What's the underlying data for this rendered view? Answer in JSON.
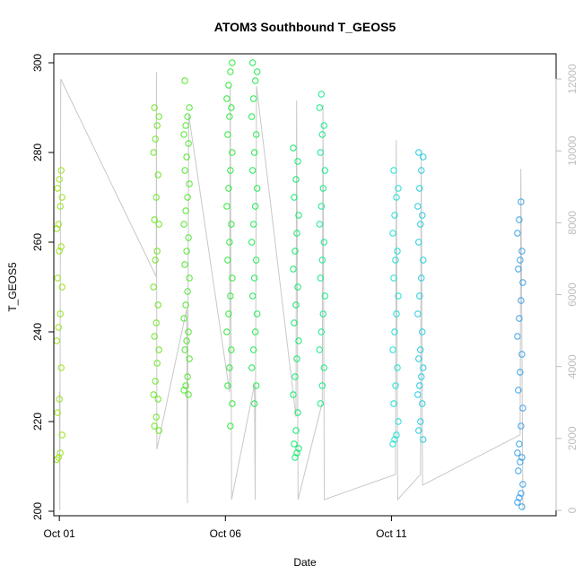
{
  "chart_data": {
    "type": "scatter",
    "title": "ATOM3 Southbound T_GEOS5",
    "xlabel": "Date",
    "ylabel": "T_GEOS5",
    "x_range": [
      "2016-09-30T20:00",
      "2016-10-15T23:00"
    ],
    "ylim": [
      199,
      302
    ],
    "x_ticks": [
      {
        "date": "2016-10-01",
        "label": "Oct 01"
      },
      {
        "date": "2016-10-06",
        "label": "Oct 06"
      },
      {
        "date": "2016-10-11",
        "label": "Oct 11"
      }
    ],
    "y_ticks": [
      200,
      220,
      240,
      260,
      280,
      300
    ],
    "y2_label": "",
    "y2lim": [
      -150,
      12700
    ],
    "y2_ticks": [
      0,
      2000,
      4000,
      6000,
      8000,
      10000,
      12000
    ],
    "y2_color": "#bdbdbd",
    "color_scale": "hue along flight time: yellow-green to green to cyan to blue",
    "series": [
      {
        "color": "#9be21f",
        "x": "2016-10-01T00:00",
        "y": [
          211.5,
          212,
          213,
          217,
          222,
          225,
          232,
          238,
          241,
          244,
          250,
          252,
          258,
          259,
          263,
          264,
          268,
          270,
          272,
          274,
          276
        ]
      },
      {
        "color": "#6fe628",
        "x": "2016-10-03T22:00",
        "y": [
          218,
          219,
          221,
          225,
          226,
          229,
          233,
          236,
          239,
          242,
          246,
          250,
          256,
          258,
          264,
          265,
          270,
          275,
          280,
          283,
          286,
          288,
          290
        ]
      },
      {
        "color": "#52e833",
        "x": "2016-10-04T20:00",
        "y": [
          226,
          227,
          228,
          230,
          234,
          236,
          238,
          240,
          243,
          246,
          249,
          252,
          255,
          258,
          261,
          264,
          267,
          270,
          273,
          276,
          279,
          282,
          284,
          286,
          288,
          290,
          296
        ]
      },
      {
        "color": "#32ea3e",
        "x": "2016-10-06T03:00",
        "y": [
          219,
          224,
          228,
          232,
          236,
          240,
          244,
          248,
          252,
          256,
          260,
          264,
          268,
          272,
          276,
          280,
          284,
          288,
          290,
          292,
          295,
          298,
          300
        ]
      },
      {
        "color": "#23ea55",
        "x": "2016-10-06T21:00",
        "y": [
          224,
          228,
          232,
          236,
          240,
          244,
          248,
          252,
          256,
          260,
          264,
          268,
          272,
          276,
          280,
          284,
          288,
          292,
          296,
          298,
          300
        ]
      },
      {
        "color": "#14e96e",
        "x": "2016-10-08T03:00",
        "y": [
          212,
          213,
          214,
          215,
          218,
          222,
          226,
          230,
          234,
          238,
          242,
          246,
          250,
          254,
          258,
          262,
          266,
          270,
          274,
          278,
          281
        ]
      },
      {
        "color": "#19ea8a",
        "x": "2016-10-08T22:00",
        "y": [
          224,
          228,
          232,
          236,
          240,
          244,
          248,
          252,
          256,
          260,
          264,
          268,
          272,
          276,
          280,
          284,
          286,
          290,
          293
        ]
      },
      {
        "color": "#22e0d4",
        "x": "2016-10-11T03:00",
        "y": [
          215,
          216,
          217,
          220,
          224,
          228,
          232,
          236,
          240,
          244,
          248,
          252,
          256,
          258,
          262,
          266,
          270,
          272,
          276
        ]
      },
      {
        "color": "#28cde0",
        "x": "2016-10-11T21:00",
        "y": [
          216,
          218,
          220,
          224,
          226,
          228,
          230,
          232,
          234,
          236,
          240,
          244,
          248,
          252,
          256,
          260,
          264,
          266,
          268,
          272,
          276,
          279,
          280
        ]
      },
      {
        "color": "#3fa3e8",
        "x": "2016-10-14T21:00",
        "y": [
          201,
          202,
          203,
          204,
          206,
          209,
          211,
          212,
          213,
          215,
          219,
          223,
          227,
          231,
          235,
          239,
          243,
          247,
          251,
          254,
          256,
          258,
          262,
          265,
          269
        ]
      }
    ],
    "altitude_series": {
      "color": "#c8c8c8",
      "points": [
        {
          "x": "2016-10-01T00:00",
          "y": 3300
        },
        {
          "x": "2016-10-01T00:20",
          "y": 0
        },
        {
          "x": "2016-10-01T01:00",
          "y": 12000
        },
        {
          "x": "2016-10-03T22:00",
          "y": 6500
        },
        {
          "x": "2016-10-03T22:10",
          "y": 12200
        },
        {
          "x": "2016-10-03T22:30",
          "y": 1700
        },
        {
          "x": "2016-10-04T20:00",
          "y": 5600
        },
        {
          "x": "2016-10-04T20:30",
          "y": 200
        },
        {
          "x": "2016-10-04T21:30",
          "y": 11000
        },
        {
          "x": "2016-10-06T03:00",
          "y": 3300
        },
        {
          "x": "2016-10-06T03:30",
          "y": 11800
        },
        {
          "x": "2016-10-06T04:30",
          "y": 300
        },
        {
          "x": "2016-10-06T21:00",
          "y": 3500
        },
        {
          "x": "2016-10-06T21:30",
          "y": 300
        },
        {
          "x": "2016-10-06T22:30",
          "y": 11800
        },
        {
          "x": "2016-10-08T03:00",
          "y": 2600
        },
        {
          "x": "2016-10-08T03:30",
          "y": 11400
        },
        {
          "x": "2016-10-08T04:30",
          "y": 300
        },
        {
          "x": "2016-10-08T22:00",
          "y": 3000
        },
        {
          "x": "2016-10-08T22:30",
          "y": 11300
        },
        {
          "x": "2016-10-08T23:30",
          "y": 300
        },
        {
          "x": "2016-10-11T03:00",
          "y": 1000
        },
        {
          "x": "2016-10-11T03:30",
          "y": 10300
        },
        {
          "x": "2016-10-11T04:30",
          "y": 300
        },
        {
          "x": "2016-10-11T21:00",
          "y": 1000
        },
        {
          "x": "2016-10-11T21:30",
          "y": 10000
        },
        {
          "x": "2016-10-11T22:30",
          "y": 700
        },
        {
          "x": "2016-10-14T21:00",
          "y": 2100
        },
        {
          "x": "2016-10-14T21:30",
          "y": 9500
        },
        {
          "x": "2016-10-14T23:00",
          "y": 0
        }
      ]
    },
    "grid": false,
    "legend": "none"
  }
}
